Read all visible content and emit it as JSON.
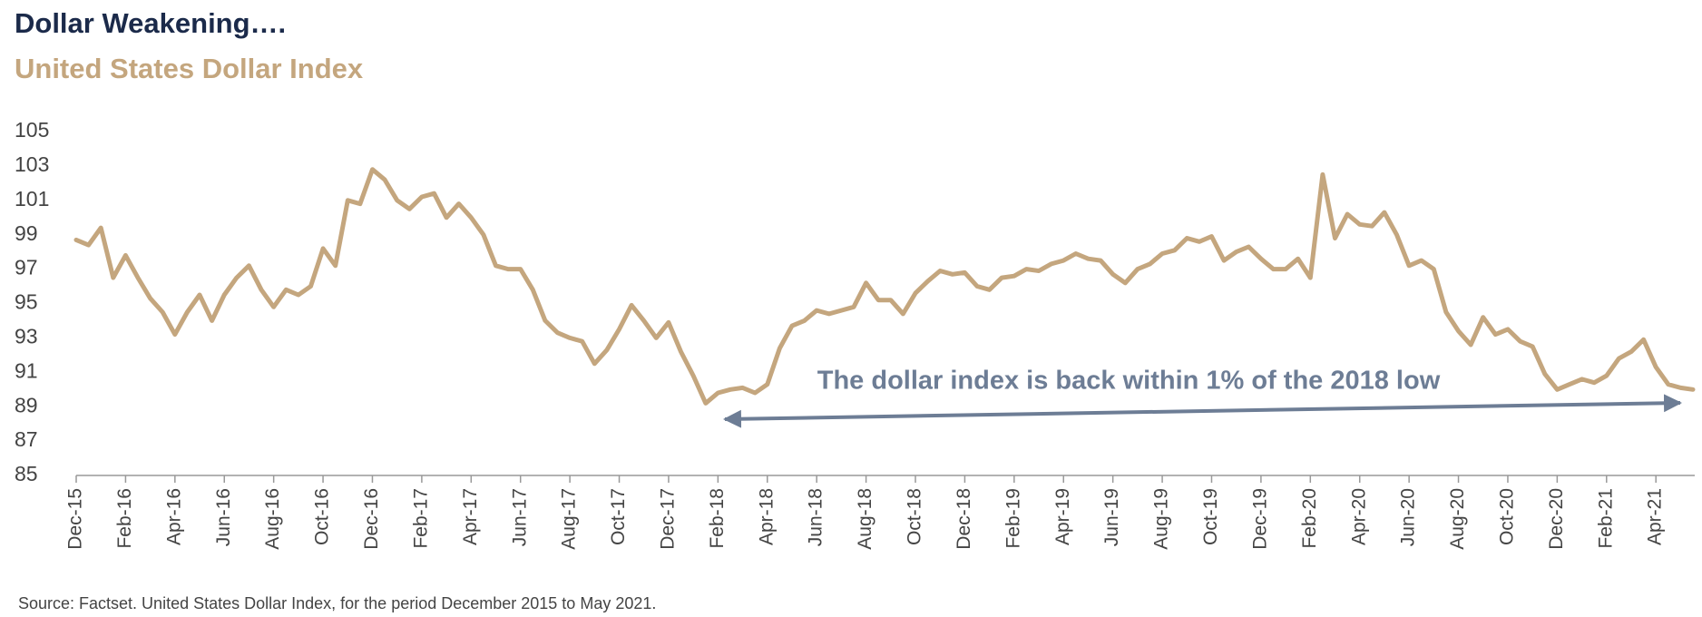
{
  "chart_data": {
    "type": "line",
    "title": "Dollar Weakening….",
    "subtitle": "United States Dollar Index",
    "annotation": "The dollar index is back within 1% of the 2018 low",
    "source": "Source: Factset. United States Dollar Index, for the period December 2015 to May 2021.",
    "color": "#c4a67e",
    "categories": [
      "Dec-15",
      null,
      null,
      null,
      "Feb-16",
      null,
      null,
      null,
      "Apr-16",
      null,
      null,
      null,
      "Jun-16",
      null,
      null,
      null,
      "Aug-16",
      null,
      null,
      null,
      "Oct-16",
      null,
      null,
      null,
      "Dec-16",
      null,
      null,
      null,
      "Feb-17",
      null,
      null,
      null,
      "Apr-17",
      null,
      null,
      null,
      "Jun-17",
      null,
      null,
      null,
      "Aug-17",
      null,
      null,
      null,
      "Oct-17",
      null,
      null,
      null,
      "Dec-17",
      null,
      null,
      null,
      "Feb-18",
      null,
      null,
      null,
      "Apr-18",
      null,
      null,
      null,
      "Jun-18",
      null,
      null,
      null,
      "Aug-18",
      null,
      null,
      null,
      "Oct-18",
      null,
      null,
      null,
      "Dec-18",
      null,
      null,
      null,
      "Feb-19",
      null,
      null,
      null,
      "Apr-19",
      null,
      null,
      null,
      "Jun-19",
      null,
      null,
      null,
      "Aug-19",
      null,
      null,
      null,
      "Oct-19",
      null,
      null,
      null,
      "Dec-19",
      null,
      null,
      null,
      "Feb-20",
      null,
      null,
      null,
      "Apr-20",
      null,
      null,
      null,
      "Jun-20",
      null,
      null,
      null,
      "Aug-20",
      null,
      null,
      null,
      "Oct-20",
      null,
      null,
      null,
      "Dec-20",
      null,
      null,
      null,
      "Feb-21",
      null,
      null,
      null,
      "Apr-21",
      null,
      null,
      null
    ],
    "values": [
      98.7,
      98.4,
      99.4,
      96.5,
      97.8,
      96.5,
      95.3,
      94.5,
      93.2,
      94.5,
      95.5,
      94.0,
      95.5,
      96.5,
      97.2,
      95.8,
      94.8,
      95.8,
      95.5,
      96.0,
      98.2,
      97.2,
      101.0,
      100.8,
      102.8,
      102.2,
      101.0,
      100.5,
      101.2,
      101.4,
      100.0,
      100.8,
      100.0,
      99.0,
      97.2,
      97.0,
      97.0,
      95.8,
      94.0,
      93.3,
      93.0,
      92.8,
      91.5,
      92.3,
      93.5,
      94.9,
      94.0,
      93.0,
      93.9,
      92.2,
      90.8,
      89.2,
      89.8,
      90.0,
      90.1,
      89.8,
      90.3,
      92.4,
      93.7,
      94.0,
      94.6,
      94.4,
      94.6,
      94.8,
      96.2,
      95.2,
      95.2,
      94.4,
      95.6,
      96.3,
      96.9,
      96.7,
      96.8,
      96.0,
      95.8,
      96.5,
      96.6,
      97.0,
      96.9,
      97.3,
      97.5,
      97.9,
      97.6,
      97.5,
      96.7,
      96.2,
      97.0,
      97.3,
      97.9,
      98.1,
      98.8,
      98.6,
      98.9,
      97.5,
      98.0,
      98.3,
      97.6,
      97.0,
      97.0,
      97.6,
      96.5,
      102.5,
      98.8,
      100.2,
      99.6,
      99.5,
      100.3,
      99.0,
      97.2,
      97.5,
      97.0,
      94.5,
      93.4,
      92.6,
      94.2,
      93.2,
      93.5,
      92.8,
      92.5,
      90.9,
      90.0,
      90.3,
      90.6,
      90.4,
      90.8,
      91.8,
      92.2,
      92.9,
      91.3,
      90.3,
      90.1,
      90.0
    ],
    "ylim": [
      85,
      105
    ],
    "yticks": [
      85,
      87,
      89,
      91,
      93,
      95,
      97,
      99,
      101,
      103,
      105
    ],
    "grid": false
  }
}
